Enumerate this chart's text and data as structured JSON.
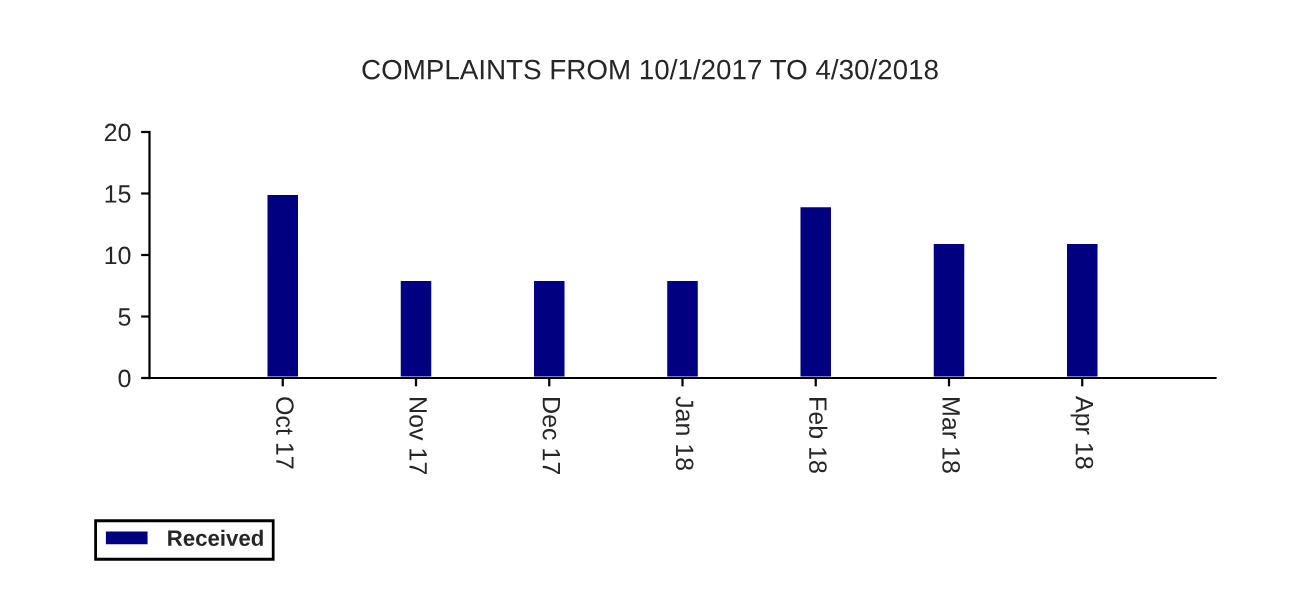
{
  "chart_data": {
    "type": "bar",
    "title": "COMPLAINTS FROM 10/1/2017 TO 4/30/2018",
    "categories": [
      "Oct 17",
      "Nov 17",
      "Dec 17",
      "Jan 18",
      "Feb 18",
      "Mar 18",
      "Apr 18"
    ],
    "series": [
      {
        "name": "Received",
        "color": "#000080",
        "values": [
          15,
          8,
          8,
          8,
          14,
          11,
          11
        ]
      }
    ],
    "ylim": [
      0,
      20
    ],
    "yticks": [
      0,
      5,
      10,
      15,
      20
    ],
    "grid": false,
    "legend": "bottom left"
  }
}
